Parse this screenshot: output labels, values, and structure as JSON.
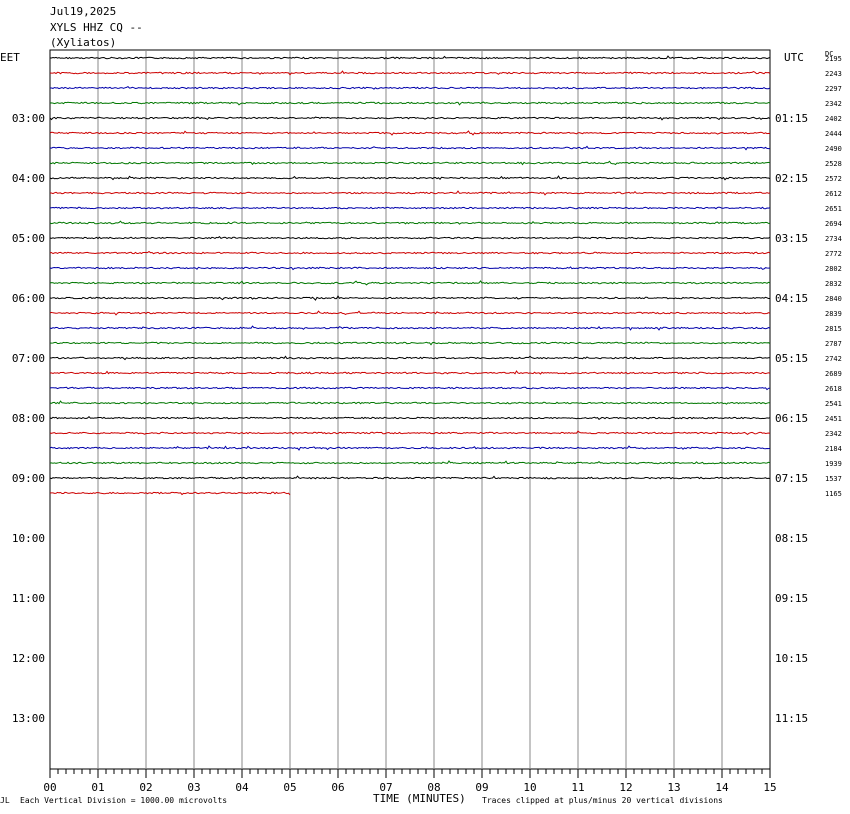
{
  "header": {
    "date": "Jul19,2025",
    "station": "XYLS HHZ CQ --",
    "location": "(Xyliatos)"
  },
  "tz_left": "EET",
  "tz_right": "UTC",
  "dc_label": "DC",
  "footer": {
    "mark": "JL",
    "scale_note": "Each Vertical Division = 1000.00 microvolts",
    "clip_note": "Traces clipped at plus/minus 20 vertical divisions"
  },
  "colors": {
    "trace": [
      "#000000",
      "#cc0000",
      "#0000aa",
      "#007700"
    ],
    "grid": "#888888"
  },
  "chart_data": {
    "type": "line",
    "title": "",
    "xlabel": "TIME (MINUTES)",
    "x_ticks": [
      "00",
      "01",
      "02",
      "03",
      "04",
      "05",
      "06",
      "07",
      "08",
      "09",
      "10",
      "11",
      "12",
      "13",
      "14",
      "15"
    ],
    "xlim": [
      0,
      15
    ],
    "left_hour_labels": [
      "03:00",
      "04:00",
      "05:00",
      "06:00",
      "07:00",
      "08:00",
      "09:00",
      "10:00",
      "11:00",
      "12:00",
      "13:00"
    ],
    "right_hour_labels": [
      "01:15",
      "02:15",
      "03:15",
      "04:15",
      "05:15",
      "06:15",
      "07:15",
      "08:15",
      "09:15",
      "10:15",
      "11:15"
    ],
    "rows_total": 48,
    "traces": [
      {
        "dc": "2195",
        "minutes": 15
      },
      {
        "dc": "2243",
        "minutes": 15
      },
      {
        "dc": "2297",
        "minutes": 15
      },
      {
        "dc": "2342",
        "minutes": 15
      },
      {
        "dc": "2402",
        "minutes": 15
      },
      {
        "dc": "2444",
        "minutes": 15
      },
      {
        "dc": "2490",
        "minutes": 15
      },
      {
        "dc": "2528",
        "minutes": 15
      },
      {
        "dc": "2572",
        "minutes": 15
      },
      {
        "dc": "2612",
        "minutes": 15
      },
      {
        "dc": "2651",
        "minutes": 15
      },
      {
        "dc": "2694",
        "minutes": 15
      },
      {
        "dc": "2734",
        "minutes": 15
      },
      {
        "dc": "2772",
        "minutes": 15
      },
      {
        "dc": "2802",
        "minutes": 15
      },
      {
        "dc": "2832",
        "minutes": 15
      },
      {
        "dc": "2840",
        "minutes": 15
      },
      {
        "dc": "2839",
        "minutes": 15
      },
      {
        "dc": "2815",
        "minutes": 15
      },
      {
        "dc": "2787",
        "minutes": 15
      },
      {
        "dc": "2742",
        "minutes": 15
      },
      {
        "dc": "2689",
        "minutes": 15
      },
      {
        "dc": "2618",
        "minutes": 15
      },
      {
        "dc": "2541",
        "minutes": 15
      },
      {
        "dc": "2451",
        "minutes": 15
      },
      {
        "dc": "2342",
        "minutes": 15
      },
      {
        "dc": "2184",
        "minutes": 15
      },
      {
        "dc": "1939",
        "minutes": 15
      },
      {
        "dc": "1537",
        "minutes": 15
      },
      {
        "dc": "1165",
        "minutes": 5
      }
    ]
  }
}
